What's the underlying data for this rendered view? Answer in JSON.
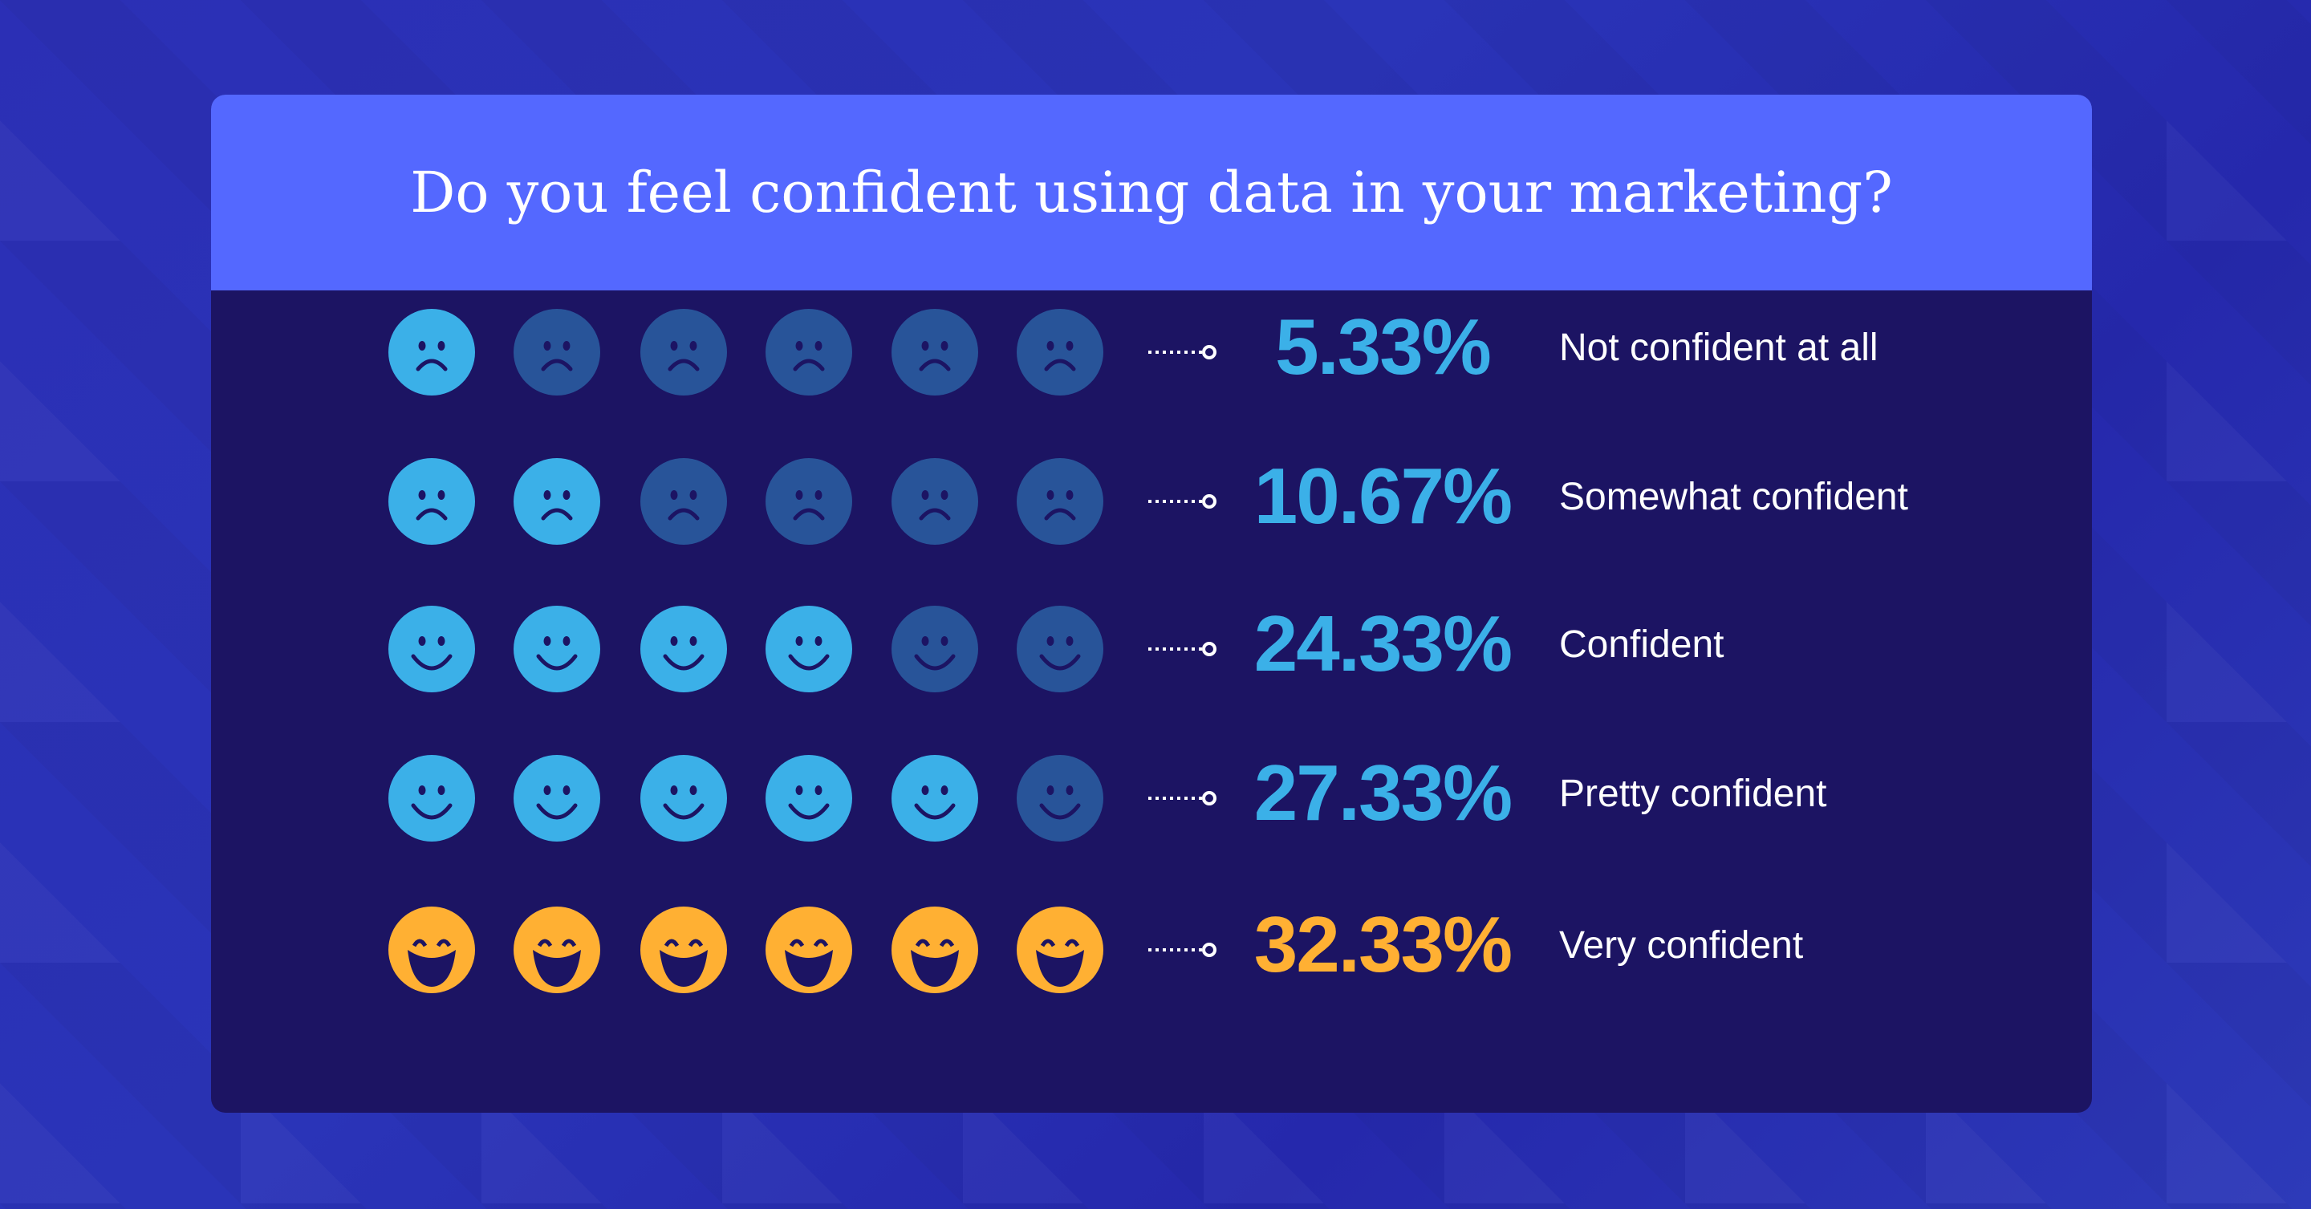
{
  "title": "Do you feel confident using data in your marketing?",
  "colors": {
    "active_blue": "#3bb0e8",
    "inactive_blue": "#285499",
    "yellow": "#ffb033",
    "eye": "#1c1463"
  },
  "chart_data": {
    "type": "pictogram",
    "title": "Do you feel confident using data in your marketing?",
    "icons_per_row": 6,
    "rows": [
      {
        "label": "Not confident at all",
        "percent": "5.33%",
        "value": 5.33,
        "filled": 1,
        "face": "sad",
        "color": "blue"
      },
      {
        "label": "Somewhat confident",
        "percent": "10.67%",
        "value": 10.67,
        "filled": 2,
        "face": "sad",
        "color": "blue"
      },
      {
        "label": "Confident",
        "percent": "24.33%",
        "value": 24.33,
        "filled": 4,
        "face": "smile",
        "color": "blue"
      },
      {
        "label": "Pretty confident",
        "percent": "27.33%",
        "value": 27.33,
        "filled": 5,
        "face": "smile",
        "color": "blue"
      },
      {
        "label": "Very confident",
        "percent": "32.33%",
        "value": 32.33,
        "filled": 6,
        "face": "laugh",
        "color": "yellow"
      }
    ]
  }
}
